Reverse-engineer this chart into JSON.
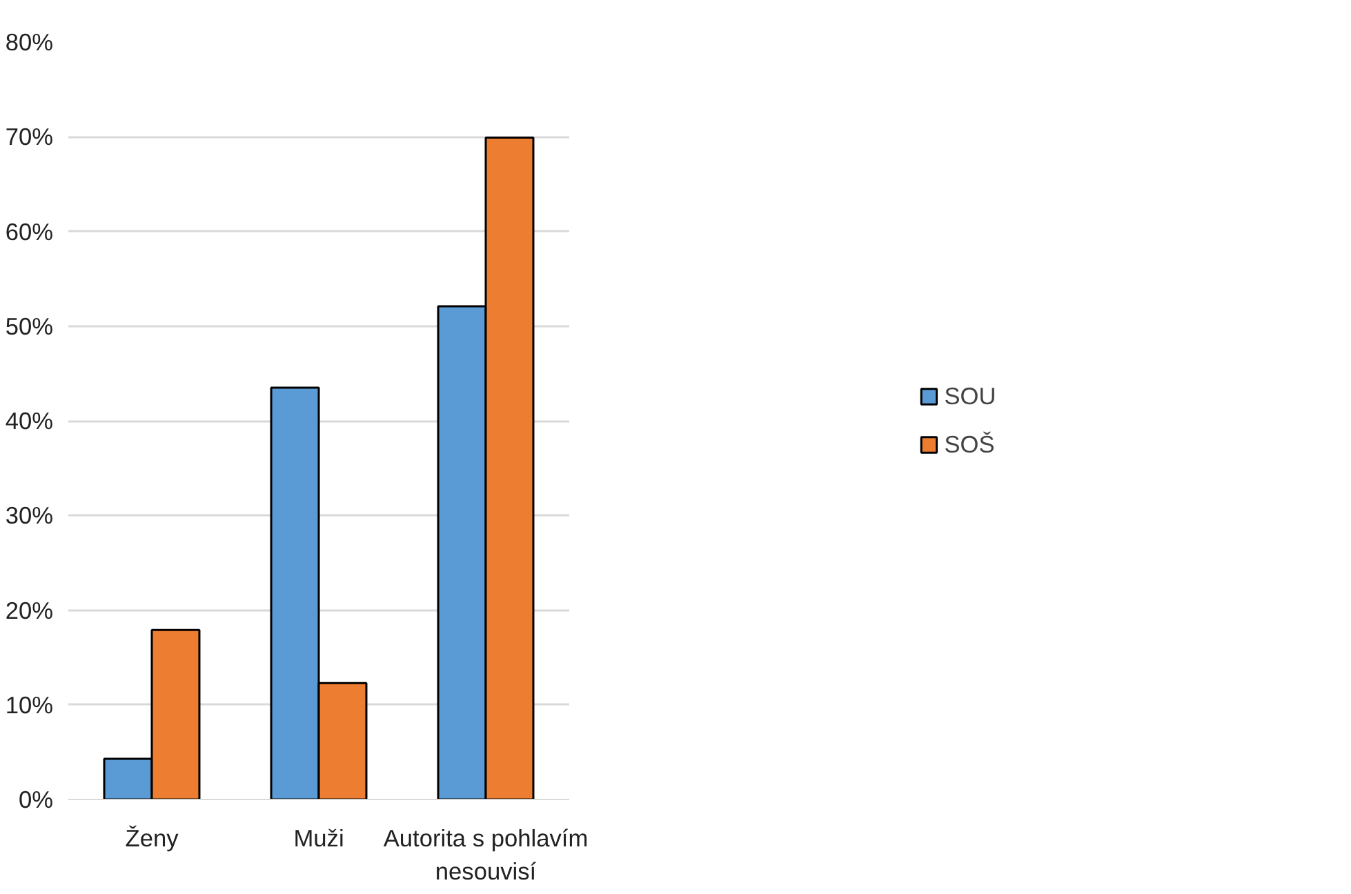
{
  "chart_data": {
    "type": "bar",
    "categories": [
      "Ženy",
      "Muži",
      "Autorita s pohlavím nesouvisí"
    ],
    "series": [
      {
        "name": "SOU",
        "color": "#5b9bd5",
        "values": [
          4.3,
          43.5,
          52.1
        ]
      },
      {
        "name": "SOŠ",
        "color": "#ed7d31",
        "values": [
          17.9,
          12.3,
          69.9
        ]
      }
    ],
    "ylim": [
      0,
      80
    ],
    "yticks": [
      {
        "value": 0,
        "label": "0%"
      },
      {
        "value": 10,
        "label": "10%"
      },
      {
        "value": 20,
        "label": "20%"
      },
      {
        "value": 30,
        "label": "30%"
      },
      {
        "value": 40,
        "label": "40%"
      },
      {
        "value": 50,
        "label": "50%"
      },
      {
        "value": 60,
        "label": "60%"
      },
      {
        "value": 70,
        "label": "70%"
      },
      {
        "value": 80,
        "label": "80%"
      }
    ],
    "grid": "y",
    "legend": "right"
  }
}
